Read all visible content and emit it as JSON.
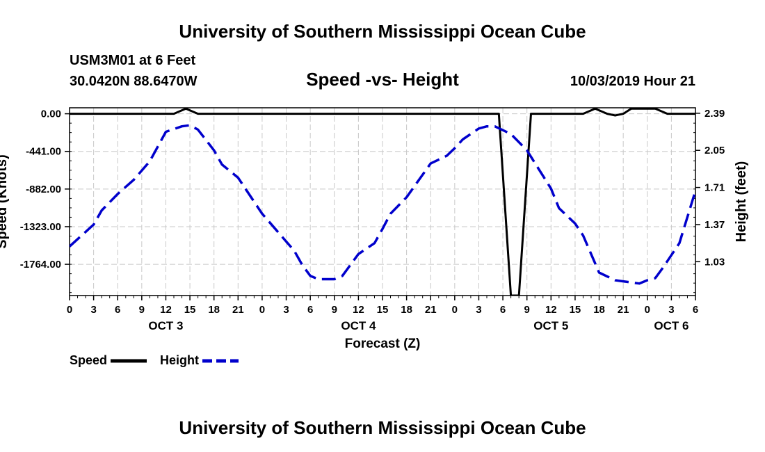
{
  "header": {
    "title_top": "University of Southern Mississippi Ocean Cube",
    "station": "USM3M01 at 6 Feet",
    "coords": "30.0420N 88.6470W",
    "chart_title": "Speed -vs- Height",
    "datetime": "10/03/2019 Hour 21"
  },
  "footer": {
    "title_bottom": "University of Southern Mississippi Ocean Cube"
  },
  "legend": [
    {
      "label": "Speed",
      "color": "#000000",
      "style": "solid"
    },
    {
      "label": "Height",
      "color": "#0000cc",
      "style": "dashed"
    }
  ],
  "chart_data": {
    "type": "line",
    "title": "Speed -vs- Height",
    "xlabel": "Forecast (Z)",
    "ylabel_left": "Speed (Knots)",
    "ylabel_right": "Height (feet)",
    "x_tick_labels": [
      "0",
      "3",
      "6",
      "9",
      "12",
      "15",
      "18",
      "21",
      "0",
      "3",
      "6",
      "9",
      "12",
      "15",
      "18",
      "21",
      "0",
      "3",
      "6",
      "9",
      "12",
      "15",
      "18",
      "21",
      "0",
      "3",
      "6"
    ],
    "x_range": [
      0,
      78
    ],
    "date_labels": [
      {
        "label": "OCT 3",
        "x": 12
      },
      {
        "label": "OCT 4",
        "x": 36
      },
      {
        "label": "OCT 5",
        "x": 60
      },
      {
        "label": "OCT 6",
        "x": 75
      }
    ],
    "y_left_ticks": [
      "0.00",
      "-441.00",
      "-882.00",
      "-1323.00",
      "-1764.00"
    ],
    "y_left_values": [
      0,
      -441,
      -882,
      -1323,
      -1764
    ],
    "y_left_range": [
      -2130,
      70
    ],
    "y_right_ticks": [
      "2.39",
      "2.05",
      "1.71",
      "1.37",
      "1.03"
    ],
    "y_right_values": [
      2.39,
      2.05,
      1.71,
      1.37,
      1.03
    ],
    "y_right_range": [
      0.72,
      2.44
    ],
    "grid": true,
    "series": [
      {
        "name": "Speed",
        "axis": "left",
        "x": [
          0,
          13,
          14.5,
          16,
          53.5,
          55,
          56,
          57.5,
          64,
          65.5,
          67,
          68,
          69,
          70,
          73,
          74.5,
          78
        ],
        "values": [
          0,
          0,
          60,
          0,
          0,
          -2130,
          -2130,
          0,
          0,
          60,
          0,
          -20,
          0,
          60,
          60,
          0,
          0
        ]
      },
      {
        "name": "Height",
        "axis": "right",
        "x": [
          0,
          3,
          4,
          6,
          8,
          10,
          12,
          14,
          15,
          16,
          18,
          19,
          21,
          24,
          26,
          28,
          29,
          30,
          31,
          33,
          34,
          36,
          38,
          39,
          40,
          42,
          45,
          47,
          48,
          49,
          50,
          51,
          52,
          53,
          55,
          57,
          60,
          61,
          63,
          64,
          66,
          68,
          69,
          71,
          72,
          73,
          74,
          76,
          78
        ],
        "values": [
          1.17,
          1.37,
          1.5,
          1.65,
          1.78,
          1.95,
          2.22,
          2.27,
          2.28,
          2.24,
          2.05,
          1.92,
          1.8,
          1.47,
          1.3,
          1.13,
          1.0,
          0.9,
          0.87,
          0.87,
          0.9,
          1.1,
          1.2,
          1.33,
          1.47,
          1.62,
          1.93,
          2.0,
          2.07,
          2.15,
          2.2,
          2.25,
          2.27,
          2.27,
          2.2,
          2.05,
          1.7,
          1.52,
          1.38,
          1.27,
          0.93,
          0.86,
          0.85,
          0.83,
          0.86,
          0.88,
          0.98,
          1.2,
          1.68
        ]
      }
    ]
  }
}
